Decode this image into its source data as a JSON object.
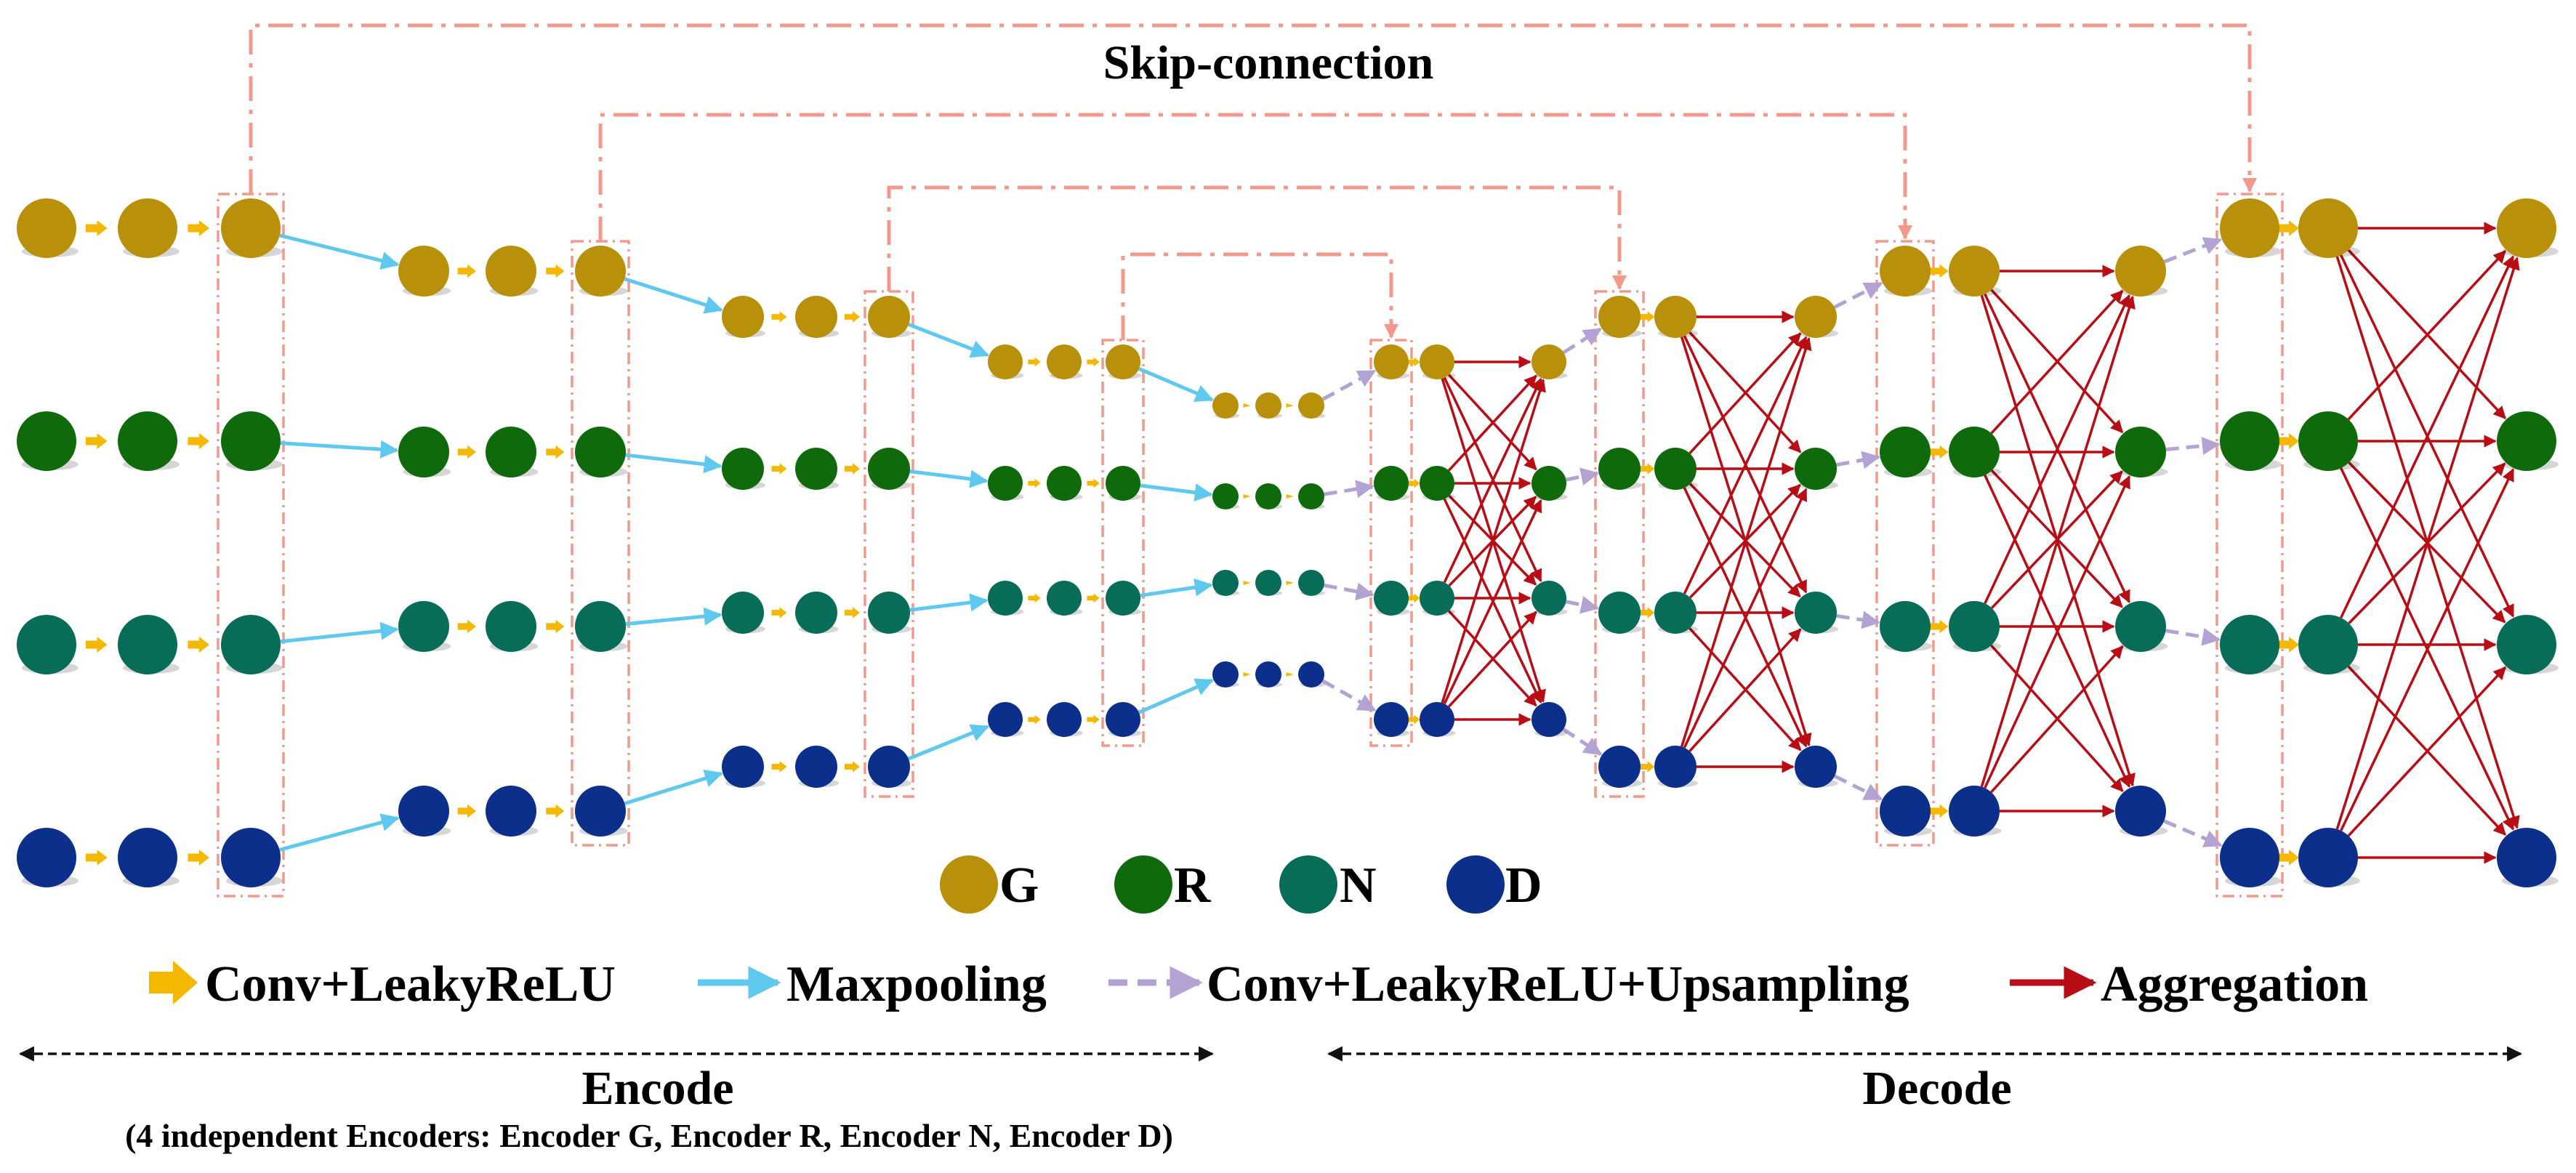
{
  "title": "Skip-connection",
  "legend_nodes": [
    {
      "key": "G",
      "label": "G",
      "color": "#b8900a"
    },
    {
      "key": "R",
      "label": "R",
      "color": "#0f6a0c"
    },
    {
      "key": "N",
      "label": "N",
      "color": "#076d59"
    },
    {
      "key": "D",
      "label": "D",
      "color": "#0b2f8a"
    }
  ],
  "legend_ops": [
    {
      "key": "conv",
      "label": "Conv+LeakyReLU",
      "color": "#f5b800",
      "style": "block-arrow"
    },
    {
      "key": "pool",
      "label": "Maxpooling",
      "color": "#5ec8ee",
      "style": "solid-arrow"
    },
    {
      "key": "up",
      "label": "Conv+LeakyReLU+Upsampling",
      "color": "#b3a2d4",
      "style": "dashed-arrow"
    },
    {
      "key": "agg",
      "label": "Aggregation",
      "color": "#b80d15",
      "style": "solid-arrow"
    }
  ],
  "skip_color": "#f2998b",
  "encode": {
    "label": "Encode",
    "note": "(4 independent Encoders: Encoder G, Encoder R, Encoder N, Encoder D)"
  },
  "decode": {
    "label": "Decode"
  }
}
